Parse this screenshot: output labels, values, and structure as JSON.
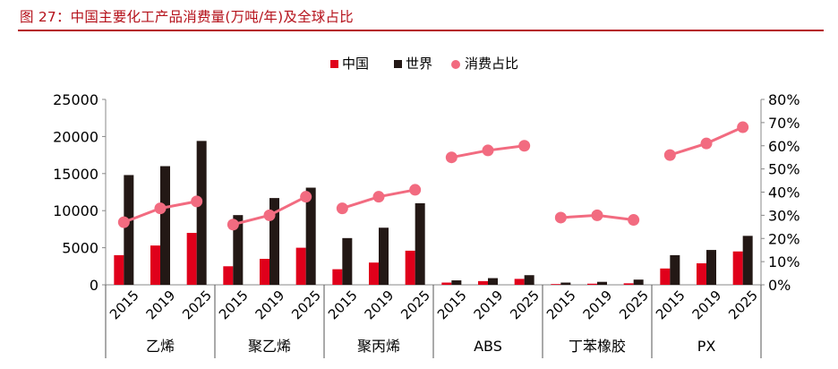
{
  "figure_title": "图 27：中国主要化工产品消费量(万吨/年)及全球占比",
  "colors": {
    "china": "#e0001b",
    "world": "#231815",
    "share": "#f26b80",
    "title": "#b5121b"
  },
  "chart_data": {
    "type": "bar",
    "title": "",
    "xlabel": "",
    "ylabel": "",
    "groups": [
      {
        "label": "乙烯",
        "years": [
          "2015",
          "2019",
          "2025"
        ],
        "china": [
          4000,
          5300,
          7000
        ],
        "world": [
          14800,
          16000,
          19400
        ],
        "share": [
          0.27,
          0.33,
          0.36
        ]
      },
      {
        "label": "聚乙烯",
        "years": [
          "2015",
          "2019",
          "2025"
        ],
        "china": [
          2500,
          3500,
          5000
        ],
        "world": [
          9400,
          11700,
          13100
        ],
        "share": [
          0.26,
          0.3,
          0.38
        ]
      },
      {
        "label": "聚丙烯",
        "years": [
          "2015",
          "2019",
          "2025"
        ],
        "china": [
          2100,
          3000,
          4600
        ],
        "world": [
          6300,
          7700,
          11000
        ],
        "share": [
          0.33,
          0.38,
          0.41
        ]
      },
      {
        "label": "ABS",
        "years": [
          "2015",
          "2019",
          "2025"
        ],
        "china": [
          300,
          500,
          800
        ],
        "world": [
          600,
          900,
          1300
        ],
        "share": [
          0.55,
          0.58,
          0.6
        ]
      },
      {
        "label": "丁苯橡胶",
        "years": [
          "2015",
          "2019",
          "2025"
        ],
        "china": [
          100,
          150,
          200
        ],
        "world": [
          300,
          400,
          700
        ],
        "share": [
          0.29,
          0.3,
          0.28
        ]
      },
      {
        "label": "PX",
        "years": [
          "2015",
          "2019",
          "2025"
        ],
        "china": [
          2200,
          2900,
          4500
        ],
        "world": [
          4000,
          4700,
          6600
        ],
        "share": [
          0.56,
          0.61,
          0.68
        ]
      }
    ],
    "series": [
      {
        "name": "中国",
        "kind": "bar",
        "axis": "left"
      },
      {
        "name": "世界",
        "kind": "bar",
        "axis": "left"
      },
      {
        "name": "消费占比",
        "kind": "line",
        "axis": "right"
      }
    ],
    "y_left": {
      "min": 0,
      "max": 25000,
      "ticks": [
        "0",
        "5000",
        "10000",
        "15000",
        "20000",
        "25000"
      ]
    },
    "y_right": {
      "min": 0,
      "max": 0.8,
      "ticks": [
        "0%",
        "10%",
        "20%",
        "30%",
        "40%",
        "50%",
        "60%",
        "70%",
        "80%"
      ]
    },
    "legend_position": "top-center",
    "grid": false
  }
}
